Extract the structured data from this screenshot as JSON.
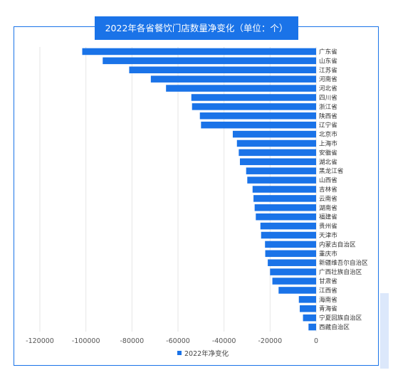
{
  "colors": {
    "accent": "#1a73e8",
    "bar": "#1a73e8",
    "grid": "#e6e6e6"
  },
  "chart_data": {
    "type": "bar",
    "orientation": "horizontal",
    "title": "2022年各省餐饮门店数量净变化（单位：个）",
    "xlabel": "",
    "ylabel": "",
    "xlim": [
      -120000,
      0
    ],
    "x_ticks": [
      "-120000",
      "-100000",
      "-80000",
      "-60000",
      "-40000",
      "-20000",
      "0"
    ],
    "grid": "vertical",
    "legend_position": "bottom",
    "categories": [
      "广东省",
      "山东省",
      "江苏省",
      "河南省",
      "河北省",
      "四川省",
      "浙江省",
      "陕西省",
      "辽宁省",
      "北京市",
      "上海市",
      "安徽省",
      "湖北省",
      "黑龙江省",
      "山西省",
      "吉林省",
      "云南省",
      "湖南省",
      "福建省",
      "贵州省",
      "天津市",
      "内蒙古自治区",
      "重庆市",
      "新疆维吾尔自治区",
      "广西壮族自治区",
      "甘肃省",
      "江西省",
      "海南省",
      "青海省",
      "宁夏回族自治区",
      "西藏自治区"
    ],
    "series": [
      {
        "name": "2022年净变化",
        "values": [
          -101600,
          -92700,
          -81200,
          -71800,
          -65200,
          -54200,
          -53900,
          -50500,
          -50000,
          -36200,
          -34400,
          -33600,
          -33100,
          -30400,
          -29900,
          -27600,
          -27200,
          -26700,
          -26200,
          -24200,
          -23900,
          -22200,
          -22100,
          -21000,
          -20000,
          -19000,
          -16300,
          -7500,
          -7100,
          -5700,
          -3300
        ]
      }
    ]
  }
}
